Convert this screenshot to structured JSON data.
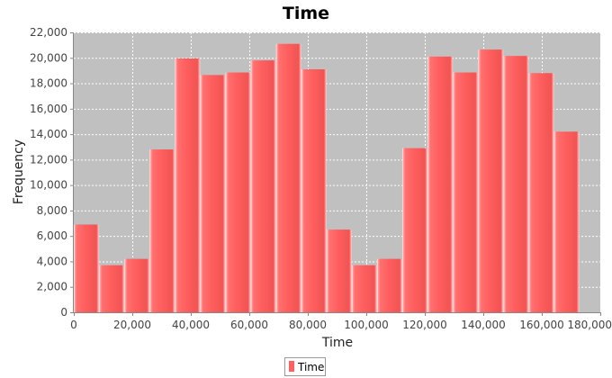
{
  "chart_data": {
    "type": "bar",
    "title": "Time",
    "xlabel": "Time",
    "ylabel": "Frequency",
    "xlim": [
      0,
      180000
    ],
    "ylim": [
      0,
      22000
    ],
    "x_ticks": [
      0,
      20000,
      40000,
      60000,
      80000,
      100000,
      120000,
      140000,
      160000,
      180000
    ],
    "x_tick_labels": [
      "0",
      "20,000",
      "40,000",
      "60,000",
      "80,000",
      "100,000",
      "120,000",
      "140,000",
      "160,000",
      "180,000"
    ],
    "y_ticks": [
      0,
      2000,
      4000,
      6000,
      8000,
      10000,
      12000,
      14000,
      16000,
      18000,
      20000,
      22000
    ],
    "y_tick_labels": [
      "0",
      "2,000",
      "4,000",
      "6,000",
      "8,000",
      "10,000",
      "12,000",
      "14,000",
      "16,000",
      "18,000",
      "20,000",
      "22,000"
    ],
    "grid": true,
    "legend_position": "bottom",
    "series": [
      {
        "name": "Time",
        "bins": [
          {
            "x_start": 0,
            "x_end": 8640,
            "value": 6900
          },
          {
            "x_start": 8640,
            "x_end": 17280,
            "value": 3700
          },
          {
            "x_start": 17280,
            "x_end": 25920,
            "value": 4200
          },
          {
            "x_start": 25920,
            "x_end": 34560,
            "value": 12800
          },
          {
            "x_start": 34560,
            "x_end": 43200,
            "value": 19950
          },
          {
            "x_start": 43200,
            "x_end": 51840,
            "value": 18650
          },
          {
            "x_start": 51840,
            "x_end": 60480,
            "value": 18850
          },
          {
            "x_start": 60480,
            "x_end": 69120,
            "value": 19800
          },
          {
            "x_start": 69120,
            "x_end": 77760,
            "value": 21100
          },
          {
            "x_start": 77760,
            "x_end": 86400,
            "value": 19100
          },
          {
            "x_start": 86400,
            "x_end": 95040,
            "value": 6500
          },
          {
            "x_start": 95040,
            "x_end": 103680,
            "value": 3700
          },
          {
            "x_start": 103680,
            "x_end": 112320,
            "value": 4200
          },
          {
            "x_start": 112320,
            "x_end": 120960,
            "value": 12900
          },
          {
            "x_start": 120960,
            "x_end": 129600,
            "value": 20100
          },
          {
            "x_start": 129600,
            "x_end": 138240,
            "value": 18850
          },
          {
            "x_start": 138240,
            "x_end": 146880,
            "value": 20650
          },
          {
            "x_start": 146880,
            "x_end": 155520,
            "value": 20150
          },
          {
            "x_start": 155520,
            "x_end": 164160,
            "value": 18800
          },
          {
            "x_start": 164160,
            "x_end": 172800,
            "value": 14200
          }
        ]
      }
    ],
    "colors": {
      "plot_background": "#c0c0c0",
      "bar_fill": "#ff6060",
      "bar_highlight": "#ffb0b0",
      "bar_shadow": "#e04848",
      "gridline": "#ffffff"
    }
  }
}
